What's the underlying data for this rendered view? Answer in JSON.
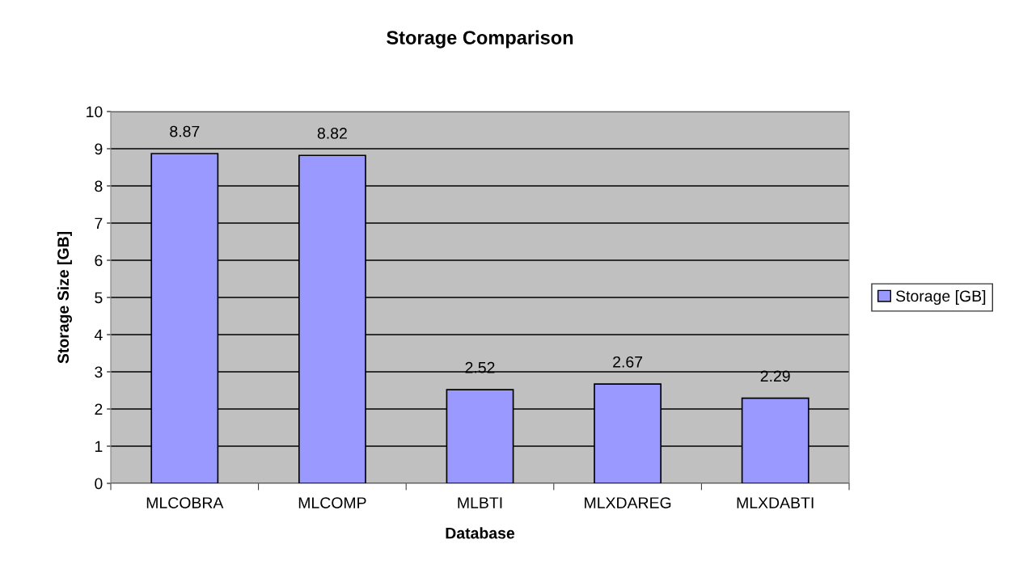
{
  "chart_data": {
    "type": "bar",
    "title": "Storage Comparison",
    "xlabel": "Database",
    "ylabel": "Storage Size [GB]",
    "categories": [
      "MLCOBRA",
      "MLCOMP",
      "MLBTI",
      "MLXDAREG",
      "MLXDABTI"
    ],
    "series": [
      {
        "name": "Storage [GB]",
        "color": "#9999ff",
        "values": [
          8.87,
          8.82,
          2.52,
          2.67,
          2.29
        ]
      }
    ],
    "ylim": [
      0,
      10
    ],
    "yticks": [
      0,
      1,
      2,
      3,
      4,
      5,
      6,
      7,
      8,
      9,
      10
    ],
    "grid": "y",
    "legend": "right",
    "data_labels": true
  }
}
